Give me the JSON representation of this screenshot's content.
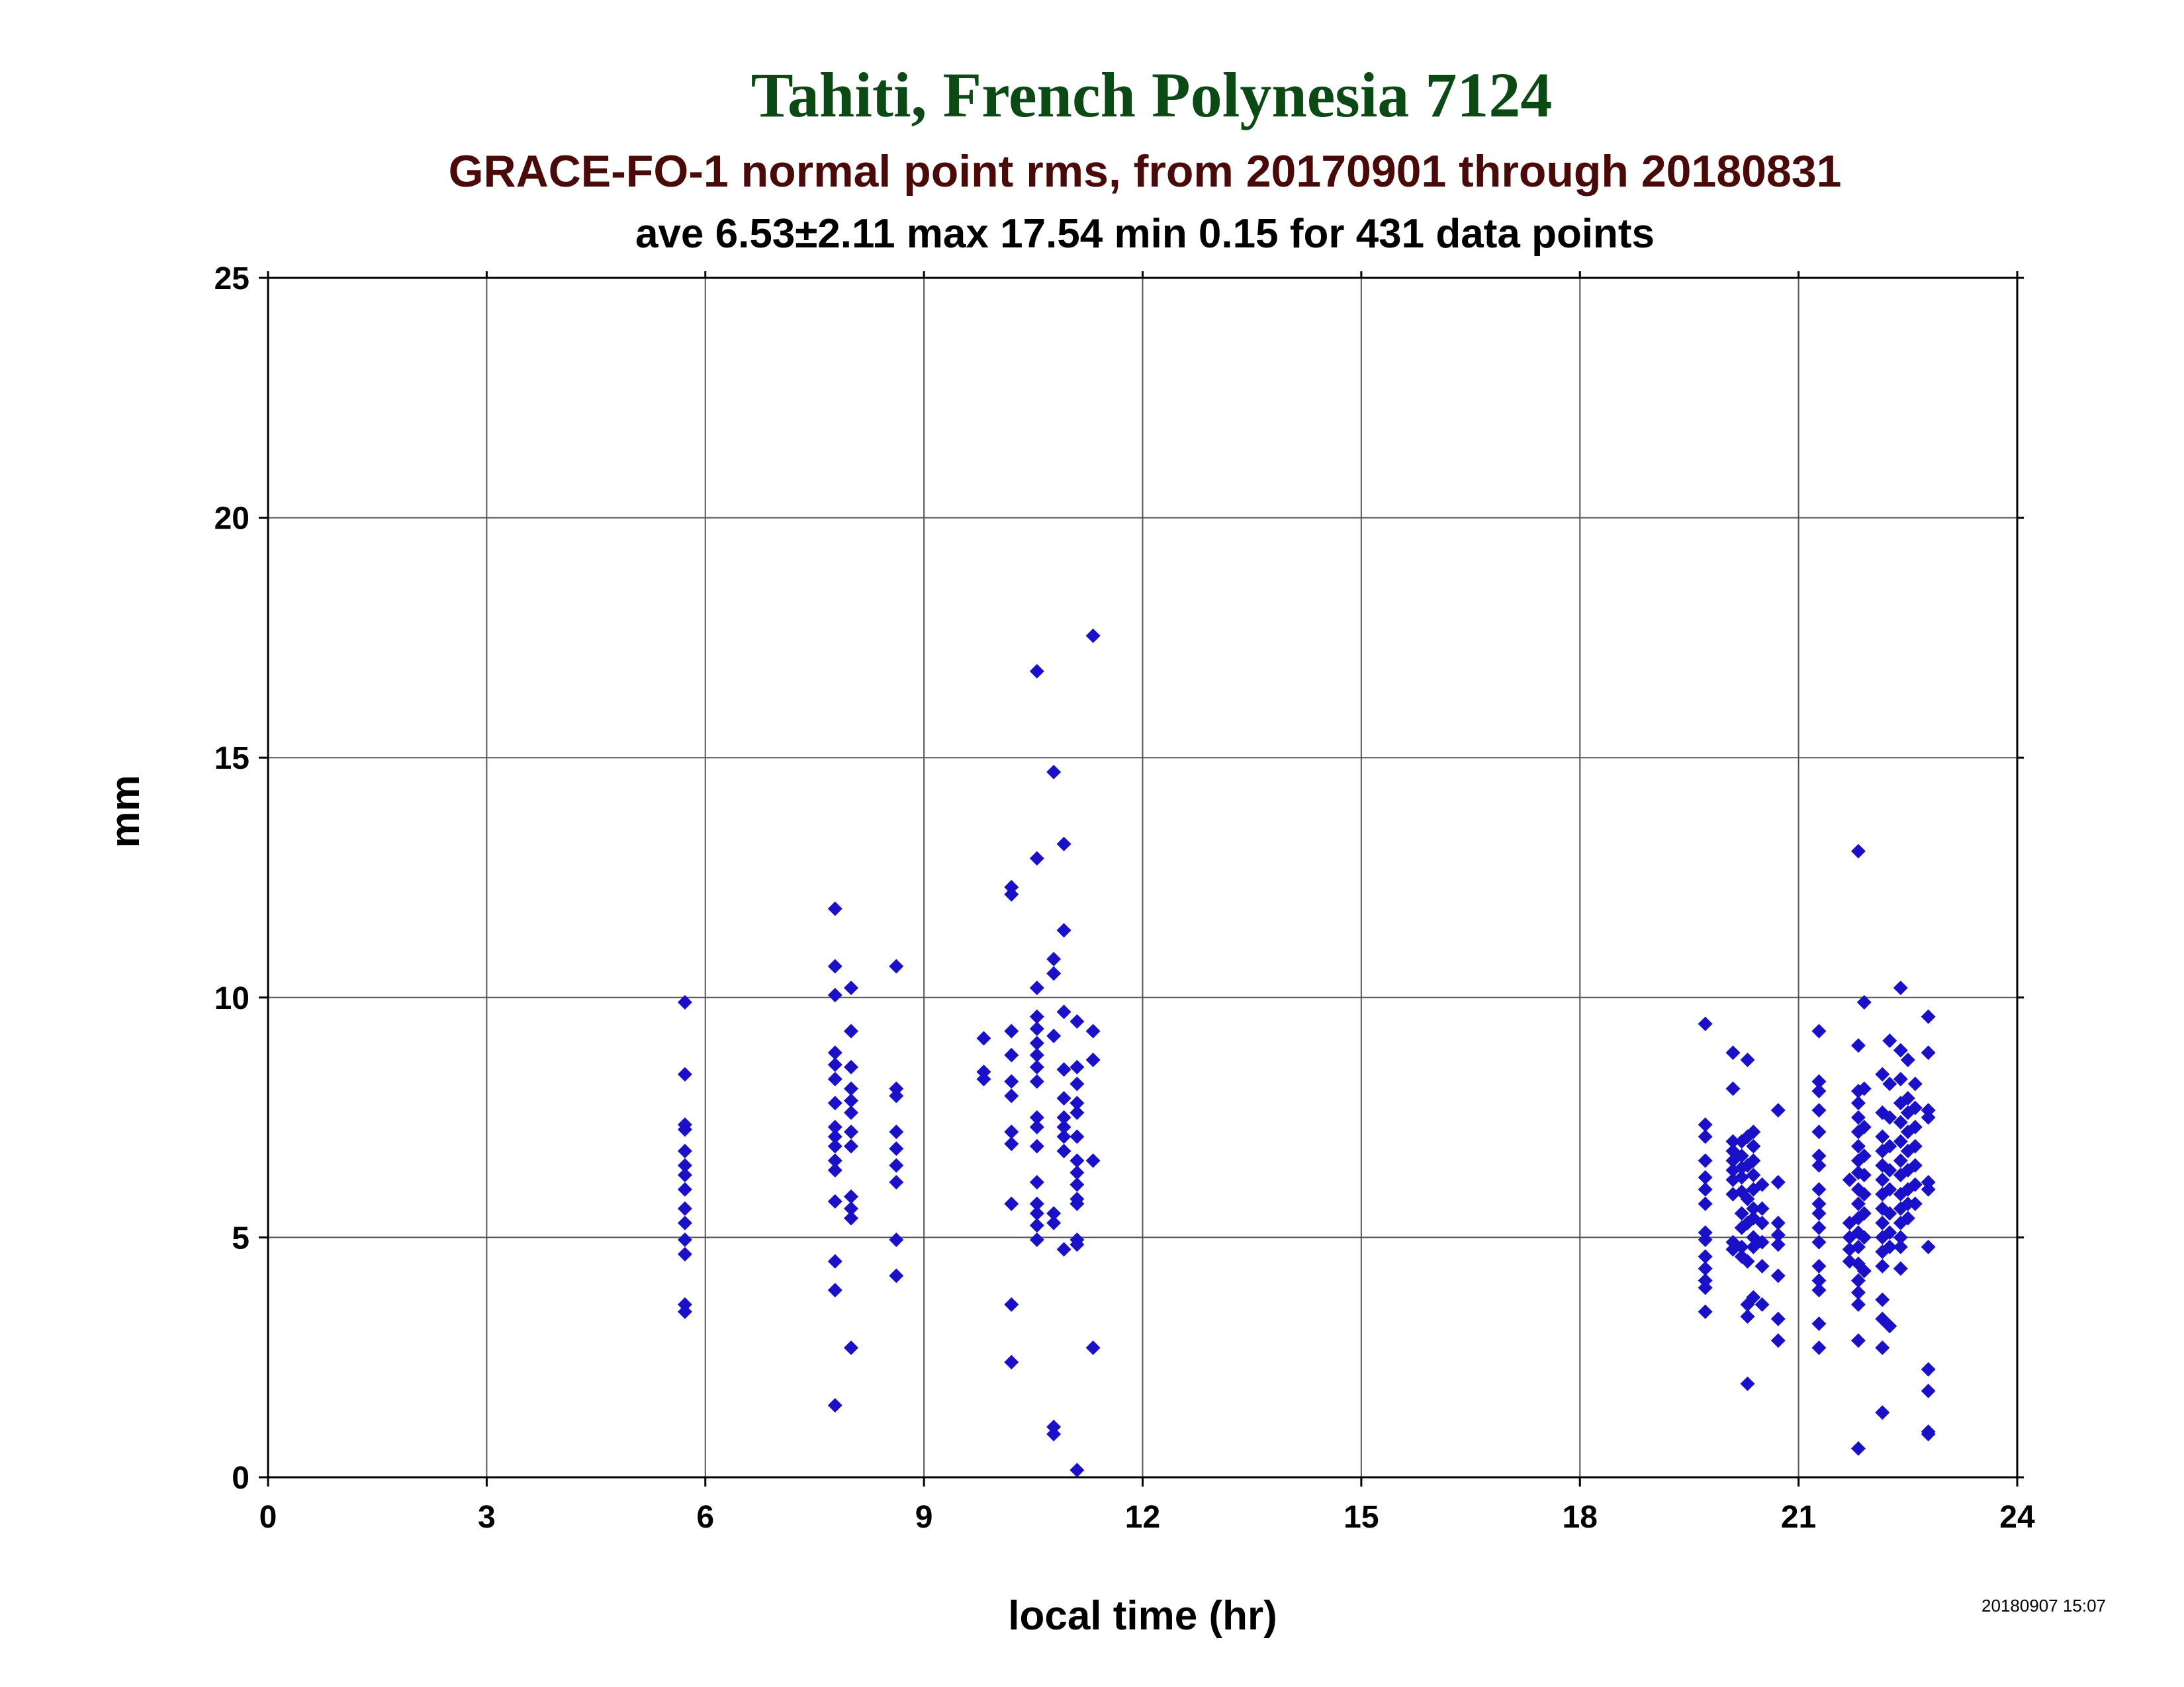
{
  "header": {
    "site": "Tahiti, French Polynesia 7124",
    "title": "GRACE-FO-1 normal point rms, from 20170901 through 20180831",
    "stats": "ave 6.53±2.11 max 17.54 min 0.15 for 431 data points"
  },
  "footer": {
    "timestamp": "20180907 15:07"
  },
  "colors": {
    "site_title": "#0b4a14",
    "main_title": "#4a0a0a",
    "points": "#1a10c8",
    "grid": "#555555",
    "axes": "#000000"
  },
  "chart_data": {
    "type": "scatter",
    "title": "GRACE-FO-1 normal point rms, from 20170901 through 20180831",
    "xlabel": "local time (hr)",
    "ylabel": "mm",
    "xlim": [
      0,
      24
    ],
    "ylim": [
      0,
      25
    ],
    "xticks": [
      0,
      3,
      6,
      9,
      12,
      15,
      18,
      21,
      24
    ],
    "yticks": [
      0,
      5,
      10,
      15,
      20,
      25
    ],
    "grid": true,
    "marker": "diamond",
    "points": [
      [
        5.72,
        9.9
      ],
      [
        5.72,
        8.4
      ],
      [
        5.72,
        7.35
      ],
      [
        5.72,
        7.25
      ],
      [
        5.72,
        6.8
      ],
      [
        5.72,
        6.5
      ],
      [
        5.72,
        6.3
      ],
      [
        5.72,
        6.0
      ],
      [
        5.72,
        5.6
      ],
      [
        5.72,
        5.3
      ],
      [
        5.72,
        4.95
      ],
      [
        5.72,
        4.65
      ],
      [
        5.72,
        3.6
      ],
      [
        5.72,
        3.45
      ],
      [
        7.78,
        11.85
      ],
      [
        7.78,
        10.65
      ],
      [
        7.78,
        10.05
      ],
      [
        7.78,
        8.85
      ],
      [
        7.78,
        8.6
      ],
      [
        7.78,
        8.3
      ],
      [
        7.78,
        7.8
      ],
      [
        7.78,
        7.3
      ],
      [
        7.78,
        7.1
      ],
      [
        7.78,
        6.9
      ],
      [
        7.78,
        6.6
      ],
      [
        7.78,
        6.4
      ],
      [
        7.78,
        5.75
      ],
      [
        7.78,
        4.5
      ],
      [
        7.78,
        3.9
      ],
      [
        7.78,
        1.5
      ],
      [
        8.0,
        10.2
      ],
      [
        8.0,
        9.3
      ],
      [
        8.0,
        8.55
      ],
      [
        8.0,
        8.1
      ],
      [
        8.0,
        7.85
      ],
      [
        8.0,
        7.6
      ],
      [
        8.0,
        7.2
      ],
      [
        8.0,
        6.9
      ],
      [
        8.0,
        5.85
      ],
      [
        8.0,
        5.6
      ],
      [
        8.0,
        5.4
      ],
      [
        8.0,
        2.7
      ],
      [
        8.62,
        10.65
      ],
      [
        8.62,
        8.1
      ],
      [
        8.62,
        7.95
      ],
      [
        8.62,
        7.2
      ],
      [
        8.62,
        6.85
      ],
      [
        8.62,
        6.5
      ],
      [
        8.62,
        6.15
      ],
      [
        8.62,
        4.95
      ],
      [
        8.62,
        4.2
      ],
      [
        9.82,
        9.15
      ],
      [
        9.82,
        8.45
      ],
      [
        9.82,
        8.3
      ],
      [
        10.2,
        12.3
      ],
      [
        10.2,
        12.15
      ],
      [
        10.2,
        9.3
      ],
      [
        10.2,
        8.8
      ],
      [
        10.2,
        8.25
      ],
      [
        10.2,
        7.95
      ],
      [
        10.2,
        7.2
      ],
      [
        10.2,
        6.95
      ],
      [
        10.2,
        5.7
      ],
      [
        10.2,
        3.6
      ],
      [
        10.2,
        2.4
      ],
      [
        10.55,
        16.8
      ],
      [
        10.55,
        12.9
      ],
      [
        10.55,
        10.2
      ],
      [
        10.55,
        9.6
      ],
      [
        10.55,
        9.35
      ],
      [
        10.55,
        9.05
      ],
      [
        10.55,
        8.8
      ],
      [
        10.55,
        8.55
      ],
      [
        10.55,
        8.25
      ],
      [
        10.55,
        7.5
      ],
      [
        10.55,
        7.3
      ],
      [
        10.55,
        6.9
      ],
      [
        10.55,
        6.15
      ],
      [
        10.55,
        5.7
      ],
      [
        10.55,
        5.5
      ],
      [
        10.55,
        5.25
      ],
      [
        10.55,
        4.95
      ],
      [
        10.78,
        14.7
      ],
      [
        10.78,
        10.8
      ],
      [
        10.78,
        10.5
      ],
      [
        10.78,
        9.2
      ],
      [
        10.78,
        5.5
      ],
      [
        10.78,
        5.3
      ],
      [
        10.78,
        1.05
      ],
      [
        10.78,
        0.9
      ],
      [
        10.92,
        13.2
      ],
      [
        10.92,
        11.4
      ],
      [
        10.92,
        9.7
      ],
      [
        10.92,
        8.5
      ],
      [
        10.92,
        7.9
      ],
      [
        10.92,
        7.5
      ],
      [
        10.92,
        7.3
      ],
      [
        10.92,
        7.1
      ],
      [
        10.92,
        6.8
      ],
      [
        10.92,
        4.75
      ],
      [
        11.1,
        9.5
      ],
      [
        11.1,
        8.55
      ],
      [
        11.1,
        8.2
      ],
      [
        11.1,
        7.8
      ],
      [
        11.1,
        7.6
      ],
      [
        11.1,
        7.1
      ],
      [
        11.1,
        6.6
      ],
      [
        11.1,
        6.35
      ],
      [
        11.1,
        6.1
      ],
      [
        11.1,
        5.8
      ],
      [
        11.1,
        5.7
      ],
      [
        11.1,
        4.95
      ],
      [
        11.1,
        4.85
      ],
      [
        11.1,
        0.15
      ],
      [
        11.32,
        17.54
      ],
      [
        11.32,
        9.3
      ],
      [
        11.32,
        8.7
      ],
      [
        11.32,
        6.6
      ],
      [
        11.32,
        2.7
      ],
      [
        19.72,
        9.45
      ],
      [
        19.72,
        7.35
      ],
      [
        19.72,
        7.1
      ],
      [
        19.72,
        6.6
      ],
      [
        19.72,
        6.25
      ],
      [
        19.72,
        6.0
      ],
      [
        19.72,
        5.7
      ],
      [
        19.72,
        5.1
      ],
      [
        19.72,
        4.95
      ],
      [
        19.72,
        4.6
      ],
      [
        19.72,
        4.35
      ],
      [
        19.72,
        4.1
      ],
      [
        19.72,
        3.95
      ],
      [
        19.72,
        3.45
      ],
      [
        20.1,
        8.85
      ],
      [
        20.1,
        8.1
      ],
      [
        20.1,
        7.0
      ],
      [
        20.1,
        6.8
      ],
      [
        20.1,
        6.6
      ],
      [
        20.1,
        6.4
      ],
      [
        20.1,
        6.2
      ],
      [
        20.1,
        5.9
      ],
      [
        20.1,
        4.9
      ],
      [
        20.1,
        4.75
      ],
      [
        20.22,
        7.0
      ],
      [
        20.22,
        6.7
      ],
      [
        20.22,
        6.45
      ],
      [
        20.22,
        6.25
      ],
      [
        20.22,
        5.95
      ],
      [
        20.22,
        5.5
      ],
      [
        20.22,
        5.2
      ],
      [
        20.22,
        4.8
      ],
      [
        20.22,
        4.6
      ],
      [
        20.3,
        8.7
      ],
      [
        20.3,
        7.1
      ],
      [
        20.3,
        6.5
      ],
      [
        20.3,
        5.8
      ],
      [
        20.3,
        5.3
      ],
      [
        20.3,
        4.5
      ],
      [
        20.3,
        3.6
      ],
      [
        20.3,
        3.35
      ],
      [
        20.3,
        1.95
      ],
      [
        20.38,
        7.2
      ],
      [
        20.38,
        6.9
      ],
      [
        20.38,
        6.6
      ],
      [
        20.38,
        6.3
      ],
      [
        20.38,
        6.0
      ],
      [
        20.38,
        5.6
      ],
      [
        20.38,
        5.4
      ],
      [
        20.38,
        5.0
      ],
      [
        20.38,
        4.8
      ],
      [
        20.38,
        3.75
      ],
      [
        20.5,
        6.1
      ],
      [
        20.5,
        5.6
      ],
      [
        20.5,
        5.3
      ],
      [
        20.5,
        4.9
      ],
      [
        20.5,
        4.4
      ],
      [
        20.5,
        3.6
      ],
      [
        20.72,
        7.65
      ],
      [
        20.72,
        6.15
      ],
      [
        20.72,
        5.3
      ],
      [
        20.72,
        5.05
      ],
      [
        20.72,
        4.85
      ],
      [
        20.72,
        4.2
      ],
      [
        20.72,
        3.3
      ],
      [
        20.72,
        2.85
      ],
      [
        21.28,
        9.3
      ],
      [
        21.28,
        8.25
      ],
      [
        21.28,
        8.05
      ],
      [
        21.28,
        7.65
      ],
      [
        21.28,
        7.2
      ],
      [
        21.28,
        6.7
      ],
      [
        21.28,
        6.5
      ],
      [
        21.28,
        6.0
      ],
      [
        21.28,
        5.7
      ],
      [
        21.28,
        5.5
      ],
      [
        21.28,
        5.2
      ],
      [
        21.28,
        4.9
      ],
      [
        21.28,
        4.4
      ],
      [
        21.28,
        4.1
      ],
      [
        21.28,
        3.9
      ],
      [
        21.28,
        3.2
      ],
      [
        21.28,
        2.7
      ],
      [
        21.7,
        6.2
      ],
      [
        21.7,
        5.3
      ],
      [
        21.7,
        5.0
      ],
      [
        21.7,
        4.75
      ],
      [
        21.7,
        4.5
      ],
      [
        21.82,
        13.05
      ],
      [
        21.82,
        9.0
      ],
      [
        21.82,
        8.05
      ],
      [
        21.82,
        7.8
      ],
      [
        21.82,
        7.5
      ],
      [
        21.82,
        7.2
      ],
      [
        21.82,
        6.9
      ],
      [
        21.82,
        6.6
      ],
      [
        21.82,
        6.35
      ],
      [
        21.82,
        6.0
      ],
      [
        21.82,
        5.7
      ],
      [
        21.82,
        5.4
      ],
      [
        21.82,
        5.1
      ],
      [
        21.82,
        4.8
      ],
      [
        21.82,
        4.45
      ],
      [
        21.82,
        4.1
      ],
      [
        21.82,
        3.85
      ],
      [
        21.82,
        3.6
      ],
      [
        21.82,
        2.85
      ],
      [
        21.82,
        0.6
      ],
      [
        21.9,
        9.9
      ],
      [
        21.9,
        8.1
      ],
      [
        21.9,
        7.3
      ],
      [
        21.9,
        6.7
      ],
      [
        21.9,
        6.3
      ],
      [
        21.9,
        5.9
      ],
      [
        21.9,
        5.5
      ],
      [
        21.9,
        5.0
      ],
      [
        21.9,
        4.3
      ],
      [
        22.15,
        8.4
      ],
      [
        22.15,
        7.6
      ],
      [
        22.15,
        7.1
      ],
      [
        22.15,
        6.8
      ],
      [
        22.15,
        6.5
      ],
      [
        22.15,
        6.2
      ],
      [
        22.15,
        5.9
      ],
      [
        22.15,
        5.6
      ],
      [
        22.15,
        5.3
      ],
      [
        22.15,
        5.0
      ],
      [
        22.15,
        4.7
      ],
      [
        22.15,
        4.4
      ],
      [
        22.15,
        3.7
      ],
      [
        22.15,
        3.3
      ],
      [
        22.15,
        2.7
      ],
      [
        22.15,
        1.35
      ],
      [
        22.25,
        9.1
      ],
      [
        22.25,
        8.2
      ],
      [
        22.25,
        7.5
      ],
      [
        22.25,
        6.9
      ],
      [
        22.25,
        6.4
      ],
      [
        22.25,
        6.0
      ],
      [
        22.25,
        5.5
      ],
      [
        22.25,
        5.1
      ],
      [
        22.25,
        4.8
      ],
      [
        22.25,
        3.15
      ],
      [
        22.4,
        10.2
      ],
      [
        22.4,
        8.9
      ],
      [
        22.4,
        8.3
      ],
      [
        22.4,
        7.8
      ],
      [
        22.4,
        7.4
      ],
      [
        22.4,
        7.0
      ],
      [
        22.4,
        6.6
      ],
      [
        22.4,
        6.3
      ],
      [
        22.4,
        5.9
      ],
      [
        22.4,
        5.6
      ],
      [
        22.4,
        5.3
      ],
      [
        22.4,
        5.0
      ],
      [
        22.4,
        4.8
      ],
      [
        22.4,
        4.35
      ],
      [
        22.5,
        8.7
      ],
      [
        22.5,
        7.9
      ],
      [
        22.5,
        7.6
      ],
      [
        22.5,
        7.2
      ],
      [
        22.5,
        6.8
      ],
      [
        22.5,
        6.4
      ],
      [
        22.5,
        6.0
      ],
      [
        22.5,
        5.7
      ],
      [
        22.5,
        5.4
      ],
      [
        22.6,
        8.2
      ],
      [
        22.6,
        7.7
      ],
      [
        22.6,
        7.3
      ],
      [
        22.6,
        6.9
      ],
      [
        22.6,
        6.5
      ],
      [
        22.6,
        6.1
      ],
      [
        22.6,
        5.7
      ],
      [
        22.78,
        9.6
      ],
      [
        22.78,
        8.85
      ],
      [
        22.78,
        7.65
      ],
      [
        22.78,
        7.5
      ],
      [
        22.78,
        6.15
      ],
      [
        22.78,
        6.0
      ],
      [
        22.78,
        4.8
      ],
      [
        22.78,
        2.25
      ],
      [
        22.78,
        1.8
      ],
      [
        22.78,
        0.95
      ],
      [
        22.78,
        0.9
      ]
    ]
  }
}
